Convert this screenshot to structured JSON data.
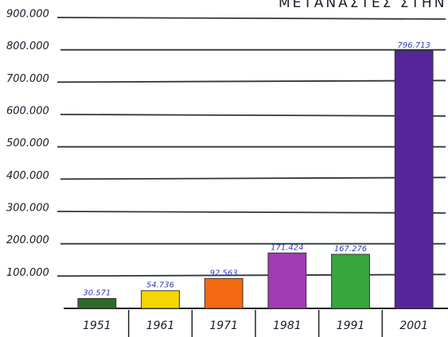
{
  "chart_data": {
    "type": "bar",
    "title": "ΜΕΤΑΝΑΣΤΕΣ ΣΤΗΝ ΕΛΛΑΔΑ",
    "categories": [
      "1951",
      "1961",
      "1971",
      "1981",
      "1991",
      "2001"
    ],
    "values": [
      30571,
      54736,
      92563,
      171424,
      167276,
      796713
    ],
    "value_labels": [
      "30.571",
      "54.736",
      "92.563",
      "171.424",
      "167.276",
      "796.713"
    ],
    "colors": [
      "#2f6a2c",
      "#f2d800",
      "#f36a12",
      "#a33ab5",
      "#39a53f",
      "#57259a"
    ],
    "ylim": [
      0,
      900000
    ],
    "yticks": [
      {
        "value": 100000,
        "label": "100.000"
      },
      {
        "value": 200000,
        "label": "200.000"
      },
      {
        "value": 300000,
        "label": "300.000"
      },
      {
        "value": 400000,
        "label": "400.000"
      },
      {
        "value": 500000,
        "label": "500.000"
      },
      {
        "value": 600000,
        "label": "600.000"
      },
      {
        "value": 700000,
        "label": "700.000"
      },
      {
        "value": 800000,
        "label": "800.000"
      },
      {
        "value": 900000,
        "label": "900.000"
      }
    ],
    "grid": true
  }
}
